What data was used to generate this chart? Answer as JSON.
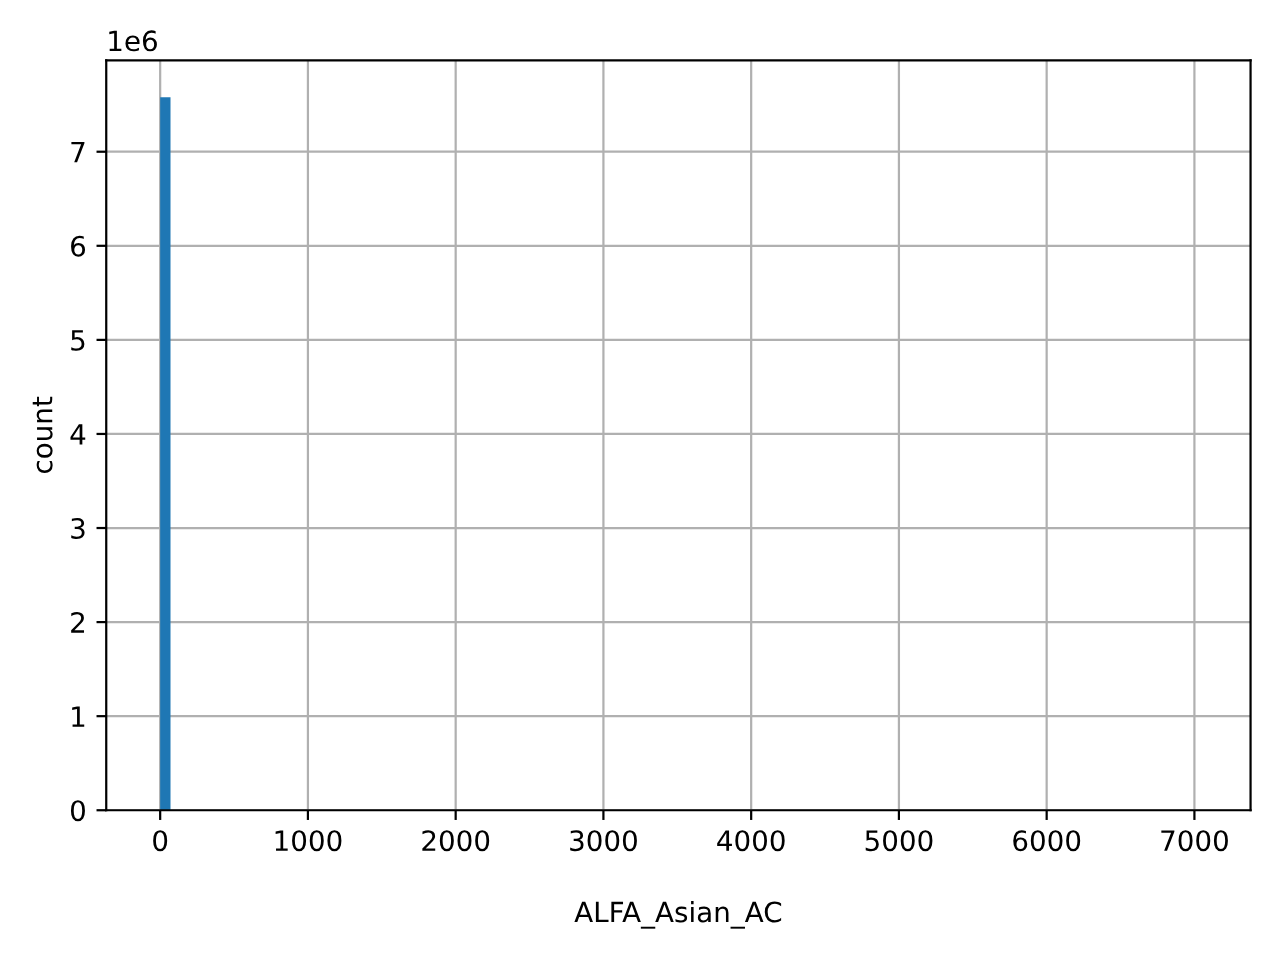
{
  "chart_data": {
    "type": "histogram",
    "xlabel": "ALFA_Asian_AC",
    "ylabel": "count",
    "bins": [
      0,
      70,
      140,
      210,
      280,
      350,
      420,
      490,
      560,
      630,
      700,
      770,
      840,
      910,
      980,
      1050,
      1120,
      1190,
      1260,
      1330,
      1400,
      1470,
      1540,
      1610,
      1680,
      1750,
      1820,
      1890,
      1960,
      2030,
      2100,
      2170,
      2240,
      2310,
      2380,
      2450,
      2520,
      2590,
      2660,
      2730,
      2800,
      2870,
      2940,
      3010,
      3080,
      3150,
      3220,
      3290,
      3360,
      3430,
      3500,
      3570,
      3640,
      3710,
      3780,
      3850,
      3920,
      3990,
      4060,
      4130,
      4200,
      4270,
      4340,
      4410,
      4480,
      4550,
      4620,
      4690,
      4760,
      4830,
      4900,
      4970,
      5040,
      5110,
      5180,
      5250,
      5320,
      5390,
      5460,
      5530,
      5600,
      5670,
      5740,
      5810,
      5880,
      5950,
      6020,
      6090,
      6160,
      6230,
      6300,
      6370,
      6440,
      6510,
      6580,
      6650,
      6720,
      6790,
      6860,
      6930,
      7000
    ],
    "values": [
      7.58,
      0,
      0,
      0,
      0,
      0,
      0,
      0,
      0,
      0,
      0,
      0,
      0,
      0,
      0,
      0,
      0,
      0,
      0,
      0,
      0,
      0,
      0,
      0,
      0,
      0,
      0,
      0,
      0,
      0,
      0,
      0,
      0,
      0,
      0,
      0,
      0,
      0,
      0,
      0,
      0,
      0,
      0,
      0,
      0,
      0,
      0,
      0,
      0,
      0,
      0,
      0,
      0,
      0,
      0,
      0,
      0,
      0,
      0,
      0,
      0,
      0,
      0,
      0,
      0,
      0,
      0,
      0,
      0,
      0,
      0,
      0,
      0,
      0,
      0,
      0,
      0,
      0,
      0,
      0,
      0,
      0,
      0,
      0,
      0,
      0,
      0,
      0,
      0,
      0,
      0,
      0,
      0,
      0,
      0,
      0,
      0,
      0,
      0,
      0
    ],
    "color": "#1f77b4",
    "xlim": [
      -365,
      7380
    ],
    "xticks": [
      0,
      1000,
      2000,
      3000,
      4000,
      5000,
      6000,
      7000
    ],
    "ylim": [
      0,
      7.97
    ],
    "yticks": [
      0,
      1,
      2,
      3,
      4,
      5,
      6,
      7
    ],
    "annotations": [
      "1e6"
    ],
    "grid": true
  }
}
